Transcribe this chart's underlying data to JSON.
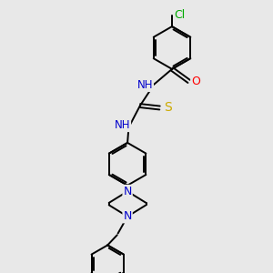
{
  "bg_color": "#e8e8e8",
  "atom_colors": {
    "N": "#0000cc",
    "O": "#ff0000",
    "S": "#ccaa00",
    "Cl": "#00aa00",
    "C": "#000000"
  },
  "bond_width": 1.4,
  "font_size": 8.5,
  "figsize": [
    3.0,
    3.0
  ],
  "dpi": 100,
  "xlim": [
    0,
    10
  ],
  "ylim": [
    0,
    10
  ]
}
